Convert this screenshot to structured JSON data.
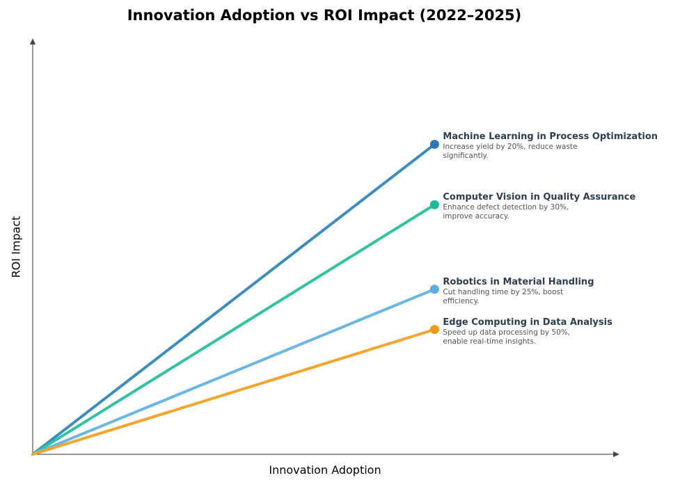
{
  "chart_data": {
    "type": "line",
    "title": "Innovation Adoption vs ROI Impact (2022–2025)",
    "xlabel": "Innovation Adoption",
    "ylabel": "ROI Impact",
    "xlim": [
      0,
      1.46
    ],
    "ylim": [
      0,
      1.03
    ],
    "grid": false,
    "ticks_shown": false,
    "series": [
      {
        "name": "Machine Learning in Process Optimization",
        "description": "Increase yield by 20%, reduce waste significantly.",
        "x": [
          0,
          1
        ],
        "y": [
          0,
          0.77
        ],
        "color": "#3a8cc1",
        "marker_color": "#2a7ab8"
      },
      {
        "name": "Computer Vision in Quality Assurance",
        "description": "Enhance defect detection by 30%, improve accuracy.",
        "x": [
          0,
          1
        ],
        "y": [
          0,
          0.62
        ],
        "color": "#2ec4a0",
        "marker_color": "#1abc9c"
      },
      {
        "name": "Robotics in Material Handling",
        "description": "Cut handling time by 25%, boost efficiency.",
        "x": [
          0,
          1
        ],
        "y": [
          0,
          0.41
        ],
        "color": "#6ab6e4",
        "marker_color": "#5dade2"
      },
      {
        "name": "Edge Computing in Data Analysis",
        "description": "Speed up data processing by 50%, enable real-time insights.",
        "x": [
          0,
          1
        ],
        "y": [
          0,
          0.31
        ],
        "color": "#f5a52a",
        "marker_color": "#f39c12"
      }
    ]
  }
}
